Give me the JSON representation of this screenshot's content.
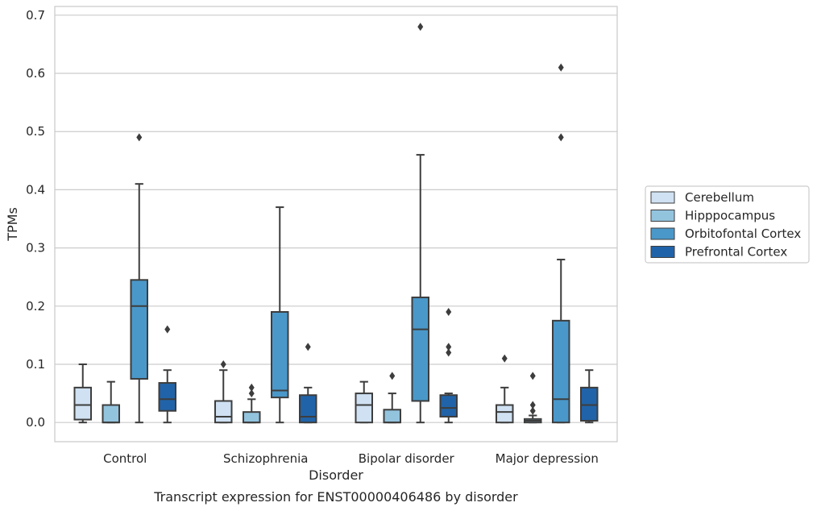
{
  "chart_data": {
    "type": "box",
    "caption": "Transcript expression for ENST00000406486 by disorder",
    "xlabel": "Disorder",
    "ylabel": "TPMs",
    "ylim": [
      -0.033,
      0.715
    ],
    "yticks": [
      0.0,
      0.1,
      0.2,
      0.3,
      0.4,
      0.5,
      0.6,
      0.7
    ],
    "ytick_labels": [
      "0.0",
      "0.1",
      "0.2",
      "0.3",
      "0.4",
      "0.5",
      "0.6",
      "0.7"
    ],
    "grid": "horizontal",
    "legend_position": "right",
    "categories": [
      "Control",
      "Schizophrenia",
      "Bipolar disorder",
      "Major depression"
    ],
    "series": [
      {
        "name": "Cerebellum",
        "color": "#cfe1f2",
        "boxes": [
          {
            "whisker_low": 0.0,
            "q1": 0.005,
            "median": 0.03,
            "q3": 0.06,
            "whisker_high": 0.1,
            "outliers": []
          },
          {
            "whisker_low": 0.0,
            "q1": 0.0,
            "median": 0.01,
            "q3": 0.037,
            "whisker_high": 0.09,
            "outliers": [
              0.1
            ]
          },
          {
            "whisker_low": 0.0,
            "q1": 0.0,
            "median": 0.03,
            "q3": 0.05,
            "whisker_high": 0.07,
            "outliers": []
          },
          {
            "whisker_low": 0.0,
            "q1": 0.0,
            "median": 0.018,
            "q3": 0.03,
            "whisker_high": 0.06,
            "outliers": [
              0.11
            ]
          }
        ]
      },
      {
        "name": "Hipppocampus",
        "color": "#93c4de",
        "boxes": [
          {
            "whisker_low": 0.0,
            "q1": 0.0,
            "median": 0.0,
            "q3": 0.03,
            "whisker_high": 0.07,
            "outliers": []
          },
          {
            "whisker_low": 0.0,
            "q1": 0.0,
            "median": 0.0,
            "q3": 0.018,
            "whisker_high": 0.04,
            "outliers": [
              0.05,
              0.06
            ]
          },
          {
            "whisker_low": 0.0,
            "q1": 0.0,
            "median": 0.0,
            "q3": 0.022,
            "whisker_high": 0.05,
            "outliers": [
              0.08
            ]
          },
          {
            "whisker_low": 0.0,
            "q1": 0.0,
            "median": 0.003,
            "q3": 0.006,
            "whisker_high": 0.012,
            "outliers": [
              0.02,
              0.03,
              0.08
            ]
          }
        ]
      },
      {
        "name": "Orbitofontal Cortex",
        "color": "#4a98c9",
        "boxes": [
          {
            "whisker_low": 0.0,
            "q1": 0.075,
            "median": 0.2,
            "q3": 0.245,
            "whisker_high": 0.41,
            "outliers": [
              0.49
            ]
          },
          {
            "whisker_low": 0.0,
            "q1": 0.043,
            "median": 0.055,
            "q3": 0.19,
            "whisker_high": 0.37,
            "outliers": []
          },
          {
            "whisker_low": 0.0,
            "q1": 0.037,
            "median": 0.16,
            "q3": 0.215,
            "whisker_high": 0.46,
            "outliers": [
              0.68
            ]
          },
          {
            "whisker_low": 0.0,
            "q1": 0.0,
            "median": 0.04,
            "q3": 0.175,
            "whisker_high": 0.28,
            "outliers": [
              0.49,
              0.61
            ]
          }
        ]
      },
      {
        "name": "Prefrontal Cortex",
        "color": "#2163a8",
        "boxes": [
          {
            "whisker_low": 0.0,
            "q1": 0.02,
            "median": 0.04,
            "q3": 0.068,
            "whisker_high": 0.09,
            "outliers": [
              0.16
            ]
          },
          {
            "whisker_low": 0.0,
            "q1": 0.0,
            "median": 0.01,
            "q3": 0.047,
            "whisker_high": 0.06,
            "outliers": [
              0.13
            ]
          },
          {
            "whisker_low": 0.0,
            "q1": 0.01,
            "median": 0.025,
            "q3": 0.047,
            "whisker_high": 0.05,
            "outliers": [
              0.12,
              0.13,
              0.19
            ]
          },
          {
            "whisker_low": 0.0,
            "q1": 0.003,
            "median": 0.03,
            "q3": 0.06,
            "whisker_high": 0.09,
            "outliers": []
          }
        ]
      }
    ]
  }
}
